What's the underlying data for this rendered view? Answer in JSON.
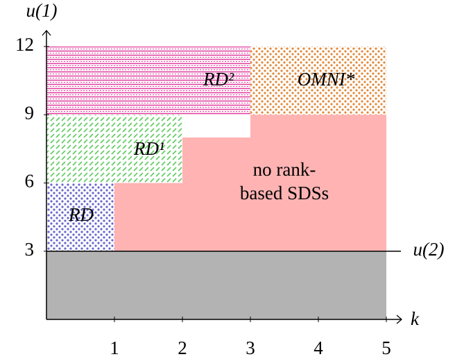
{
  "chart_data": {
    "type": "region",
    "xlabel": "k",
    "ylabel": "u(1)",
    "xlim": [
      0,
      5
    ],
    "ylim": [
      0,
      12
    ],
    "xticks": [
      1,
      2,
      3,
      4,
      5
    ],
    "yticks": [
      3,
      6,
      9,
      12
    ],
    "hline": {
      "value": 3,
      "label": "u(2)"
    },
    "regions": [
      {
        "color": "#b3b3b3",
        "pattern": "solid",
        "points": [
          [
            0,
            0
          ],
          [
            5,
            0
          ],
          [
            5,
            3
          ],
          [
            0,
            3
          ]
        ]
      },
      {
        "name": "no rank-based SDSs",
        "color": "#ffb3b3",
        "pattern": "solid",
        "points": [
          [
            1,
            3
          ],
          [
            5,
            3
          ],
          [
            5,
            9
          ],
          [
            3,
            9
          ],
          [
            3,
            8
          ],
          [
            2,
            8
          ],
          [
            2,
            6
          ],
          [
            1,
            6
          ]
        ]
      },
      {
        "name": "RD",
        "color": "#6666cc",
        "pattern": "dots",
        "points": [
          [
            0,
            3
          ],
          [
            1,
            3
          ],
          [
            1,
            6
          ],
          [
            0,
            6
          ]
        ]
      },
      {
        "name": "RD¹",
        "color": "#66cc66",
        "pattern": "dashes",
        "points": [
          [
            0,
            6
          ],
          [
            2,
            6
          ],
          [
            2,
            9
          ],
          [
            0,
            9
          ]
        ]
      },
      {
        "name": "RD²",
        "color": "#e0409f",
        "pattern": "lines",
        "points": [
          [
            0,
            9
          ],
          [
            3,
            9
          ],
          [
            3,
            12
          ],
          [
            0,
            12
          ]
        ]
      },
      {
        "name": "OMNI*",
        "color": "#e08a3c",
        "pattern": "dots",
        "points": [
          [
            3,
            9
          ],
          [
            5,
            9
          ],
          [
            5,
            12
          ],
          [
            3,
            12
          ]
        ]
      }
    ]
  }
}
